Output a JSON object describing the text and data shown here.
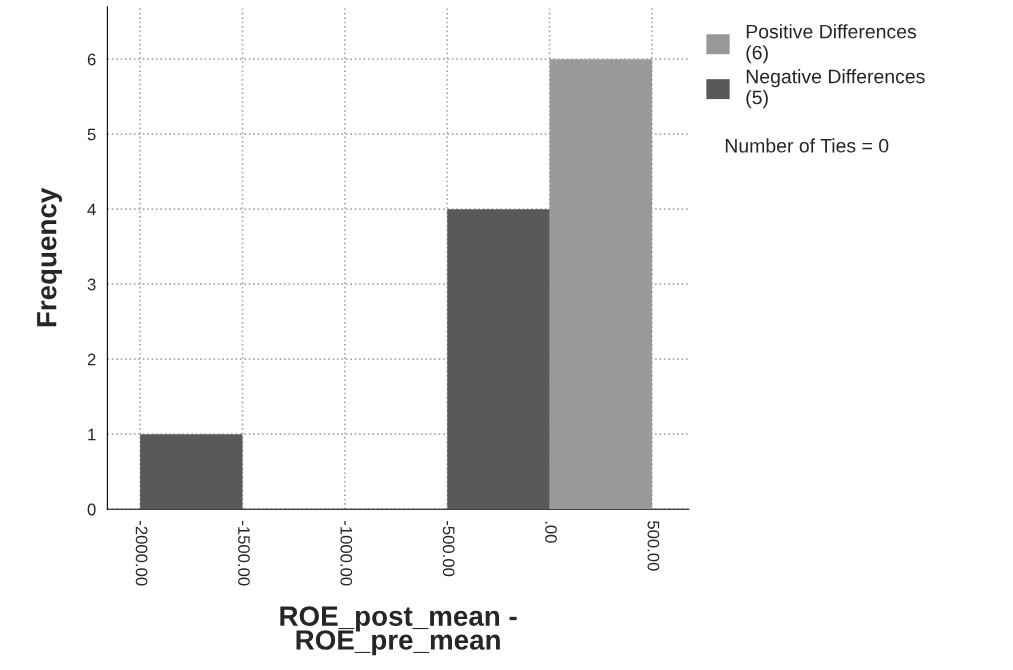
{
  "chart_data": {
    "type": "histogram",
    "xlabel": "ROE_post_mean -\nROE_pre_mean",
    "ylabel": "Frequency",
    "bins": [
      -2000,
      -1500,
      -1000,
      -500,
      0,
      500
    ],
    "series": [
      {
        "name": "Positive Differences\n(6)",
        "color": "#999999",
        "values": [
          0,
          0,
          0,
          0,
          6
        ]
      },
      {
        "name": "Negative Differences\n(5)",
        "color": "#595959",
        "values": [
          1,
          0,
          0,
          4,
          0
        ]
      }
    ],
    "xlim": [
      -2160,
      680
    ],
    "ylim": [
      0,
      6.7
    ],
    "xticks": [
      {
        "value": -2000,
        "label": "-2000.00"
      },
      {
        "value": -1500,
        "label": "-1500.00"
      },
      {
        "value": -1000,
        "label": "-1000.00"
      },
      {
        "value": -500,
        "label": "-500.00"
      },
      {
        "value": 0,
        "label": ".00"
      },
      {
        "value": 500,
        "label": "500.00"
      }
    ],
    "yticks": [
      0,
      1,
      2,
      3,
      4,
      5,
      6
    ],
    "grid": true,
    "legend": "top right",
    "annotations": [
      "Number of Ties = 0"
    ]
  }
}
